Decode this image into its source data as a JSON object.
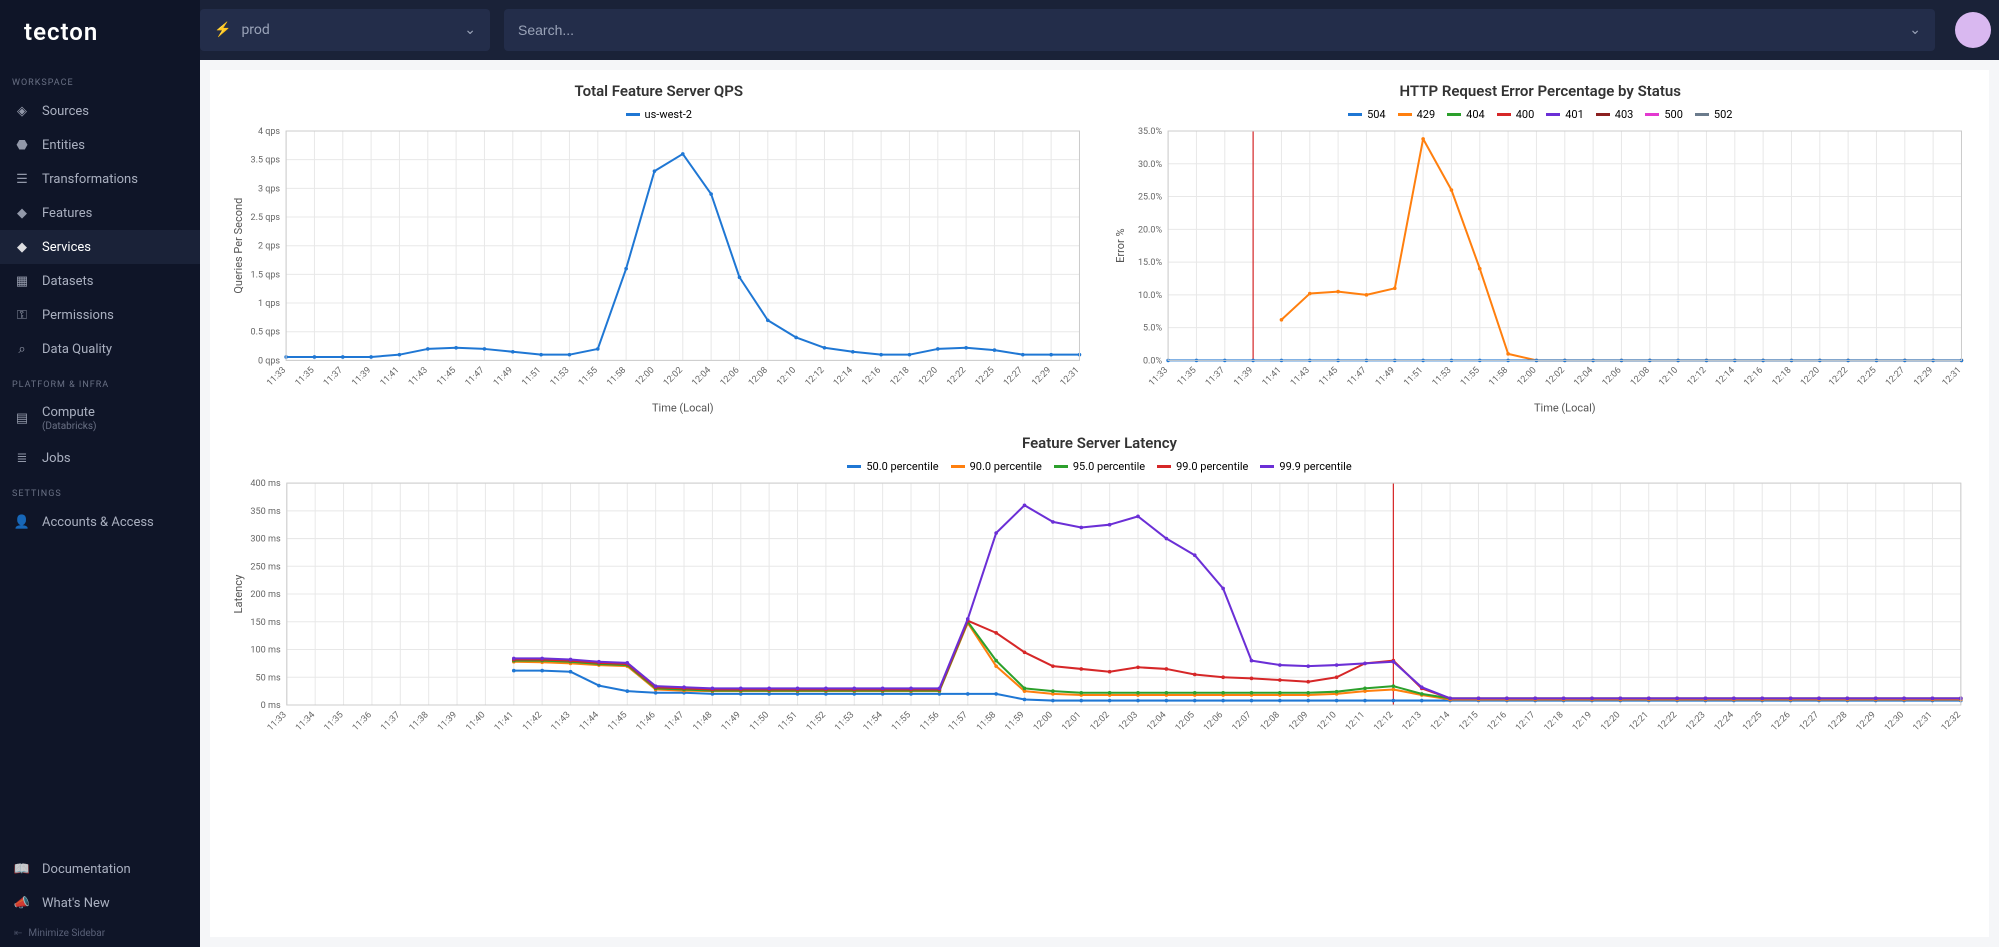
{
  "brand": "tecton",
  "topbar": {
    "env_label": "prod",
    "search_placeholder": "Search..."
  },
  "sidebar": {
    "sections": {
      "workspace": {
        "header": "WORKSPACE",
        "items": [
          {
            "label": "Sources",
            "icon": "diamond"
          },
          {
            "label": "Entities",
            "icon": "cube"
          },
          {
            "label": "Transformations",
            "icon": "layers"
          },
          {
            "label": "Features",
            "icon": "stack"
          },
          {
            "label": "Services",
            "icon": "diamond-solid",
            "active": true
          },
          {
            "label": "Datasets",
            "icon": "grid"
          },
          {
            "label": "Permissions",
            "icon": "key"
          },
          {
            "label": "Data Quality",
            "icon": "search"
          }
        ]
      },
      "platform": {
        "header": "PLATFORM & INFRA",
        "items": [
          {
            "label": "Compute",
            "sub": "(Databricks)",
            "icon": "server"
          },
          {
            "label": "Jobs",
            "icon": "list"
          }
        ]
      },
      "settings": {
        "header": "SETTINGS",
        "items": [
          {
            "label": "Accounts & Access",
            "icon": "user"
          }
        ]
      }
    },
    "footer": [
      {
        "label": "Documentation",
        "icon": "book"
      },
      {
        "label": "What's New",
        "icon": "megaphone"
      }
    ],
    "minimize_label": "Minimize Sidebar"
  },
  "charts": {
    "qps": {
      "type": "line",
      "title": "Total Feature Server QPS",
      "xlabel": "Time (Local)",
      "ylabel": "Queries Per Second",
      "legend": [
        {
          "label": "us-west-2",
          "color": "#1f77d4"
        }
      ],
      "x_categories": [
        "11:33",
        "11:35",
        "11:37",
        "11:39",
        "11:41",
        "11:43",
        "11:45",
        "11:47",
        "11:49",
        "11:51",
        "11:53",
        "11:55",
        "11:58",
        "12:00",
        "12:02",
        "12:04",
        "12:06",
        "12:08",
        "12:10",
        "12:12",
        "12:14",
        "12:16",
        "12:18",
        "12:20",
        "12:22",
        "12:25",
        "12:27",
        "12:29",
        "12:31"
      ],
      "ylim": [
        0,
        4
      ],
      "ytick_step": 0.5,
      "ytick_suffix": " qps",
      "series": [
        {
          "color": "#1f77d4",
          "values": [
            0.06,
            0.06,
            0.06,
            0.06,
            0.1,
            0.2,
            0.22,
            0.2,
            0.15,
            0.1,
            0.1,
            0.2,
            1.6,
            3.3,
            3.6,
            2.9,
            1.45,
            0.7,
            0.4,
            0.22,
            0.15,
            0.1,
            0.1,
            0.2,
            0.22,
            0.18,
            0.1,
            0.1,
            0.1
          ]
        }
      ],
      "grid_color": "#e8e8e8",
      "background_color": "#ffffff"
    },
    "errors": {
      "type": "line",
      "title": "HTTP Request Error Percentage by Status",
      "xlabel": "Time (Local)",
      "ylabel": "Error %",
      "legend": [
        {
          "label": "504",
          "color": "#1f77d4"
        },
        {
          "label": "429",
          "color": "#ff7f0e"
        },
        {
          "label": "404",
          "color": "#2ca02c"
        },
        {
          "label": "400",
          "color": "#d62728"
        },
        {
          "label": "401",
          "color": "#6b2fd6"
        },
        {
          "label": "403",
          "color": "#8c2020"
        },
        {
          "label": "500",
          "color": "#e339d0"
        },
        {
          "label": "502",
          "color": "#6b7b8c"
        }
      ],
      "x_categories": [
        "11:33",
        "11:35",
        "11:37",
        "11:39",
        "11:41",
        "11:43",
        "11:45",
        "11:47",
        "11:49",
        "11:51",
        "11:53",
        "11:55",
        "11:58",
        "12:00",
        "12:02",
        "12:04",
        "12:06",
        "12:08",
        "12:10",
        "12:12",
        "12:14",
        "12:16",
        "12:18",
        "12:20",
        "12:22",
        "12:25",
        "12:27",
        "12:29",
        "12:31"
      ],
      "ylim": [
        0,
        35
      ],
      "ytick_step": 5,
      "ytick_suffix": ".0%",
      "vline_index": 3,
      "vline_color": "#d62728",
      "series": [
        {
          "color": "#ff7f0e",
          "values": [
            null,
            null,
            null,
            null,
            6.2,
            10.2,
            10.5,
            10,
            11,
            33.8,
            26,
            14,
            1,
            0,
            0,
            0,
            0,
            0,
            0,
            0,
            0,
            0,
            0,
            0,
            0,
            0,
            0,
            0,
            0
          ]
        },
        {
          "color": "#1f77d4",
          "values": [
            0,
            0,
            0,
            0,
            0,
            0,
            0,
            0,
            0,
            0,
            0,
            0,
            0,
            0,
            0,
            0,
            0,
            0,
            0,
            0,
            0,
            0,
            0,
            0,
            0,
            0,
            0,
            0,
            0
          ]
        }
      ],
      "grid_color": "#e8e8e8",
      "background_color": "#ffffff"
    },
    "latency": {
      "type": "line",
      "title": "Feature Server Latency",
      "xlabel": "",
      "ylabel": "Latency",
      "legend": [
        {
          "label": "50.0 percentile",
          "color": "#1f77d4"
        },
        {
          "label": "90.0 percentile",
          "color": "#ff7f0e"
        },
        {
          "label": "95.0 percentile",
          "color": "#2ca02c"
        },
        {
          "label": "99.0 percentile",
          "color": "#d62728"
        },
        {
          "label": "99.9 percentile",
          "color": "#6b2fd6"
        }
      ],
      "x_categories": [
        "11:33",
        "11:34",
        "11:35",
        "11:36",
        "11:37",
        "11:38",
        "11:39",
        "11:40",
        "11:41",
        "11:42",
        "11:43",
        "11:44",
        "11:45",
        "11:46",
        "11:47",
        "11:48",
        "11:49",
        "11:50",
        "11:51",
        "11:52",
        "11:53",
        "11:54",
        "11:55",
        "11:56",
        "11:57",
        "11:58",
        "11:59",
        "12:00",
        "12:01",
        "12:02",
        "12:03",
        "12:04",
        "12:05",
        "12:06",
        "12:07",
        "12:08",
        "12:09",
        "12:10",
        "12:11",
        "12:12",
        "12:13",
        "12:14",
        "12:15",
        "12:16",
        "12:17",
        "12:18",
        "12:19",
        "12:20",
        "12:21",
        "12:22",
        "12:23",
        "12:24",
        "12:25",
        "12:26",
        "12:27",
        "12:28",
        "12:29",
        "12:30",
        "12:31",
        "12:32"
      ],
      "ylim": [
        0,
        400
      ],
      "ytick_step": 50,
      "ytick_suffix": " ms",
      "vline_index": 39,
      "vline_color": "#d62728",
      "series": [
        {
          "color": "#1f77d4",
          "values": [
            null,
            null,
            null,
            null,
            null,
            null,
            null,
            null,
            62,
            62,
            60,
            35,
            25,
            22,
            22,
            20,
            20,
            20,
            20,
            20,
            20,
            20,
            20,
            20,
            20,
            20,
            10,
            8,
            8,
            8,
            8,
            8,
            8,
            8,
            8,
            8,
            8,
            8,
            8,
            8,
            8,
            8,
            8,
            8,
            8,
            8,
            8,
            8,
            8,
            8,
            8,
            8,
            8,
            8,
            8,
            8,
            8,
            8,
            8,
            8
          ]
        },
        {
          "color": "#ff7f0e",
          "values": [
            null,
            null,
            null,
            null,
            null,
            null,
            null,
            null,
            78,
            77,
            75,
            72,
            70,
            28,
            26,
            25,
            25,
            25,
            25,
            25,
            25,
            25,
            25,
            25,
            148,
            70,
            25,
            20,
            18,
            18,
            18,
            18,
            18,
            18,
            18,
            18,
            18,
            20,
            25,
            28,
            18,
            10,
            10,
            10,
            10,
            10,
            10,
            10,
            10,
            10,
            10,
            10,
            10,
            10,
            10,
            10,
            10,
            10,
            10,
            10
          ]
        },
        {
          "color": "#2ca02c",
          "values": [
            null,
            null,
            null,
            null,
            null,
            null,
            null,
            null,
            80,
            80,
            78,
            74,
            72,
            30,
            28,
            26,
            26,
            26,
            26,
            26,
            26,
            26,
            26,
            26,
            150,
            80,
            30,
            25,
            22,
            22,
            22,
            22,
            22,
            22,
            22,
            22,
            22,
            24,
            30,
            34,
            20,
            12,
            12,
            12,
            12,
            12,
            12,
            12,
            12,
            12,
            12,
            12,
            12,
            12,
            12,
            12,
            12,
            12,
            12,
            12
          ]
        },
        {
          "color": "#d62728",
          "values": [
            null,
            null,
            null,
            null,
            null,
            null,
            null,
            null,
            82,
            82,
            80,
            76,
            74,
            32,
            30,
            28,
            28,
            28,
            28,
            28,
            28,
            28,
            28,
            28,
            152,
            130,
            95,
            70,
            65,
            60,
            68,
            65,
            55,
            50,
            48,
            45,
            42,
            50,
            75,
            80,
            30,
            12,
            12,
            12,
            12,
            12,
            12,
            12,
            12,
            12,
            12,
            12,
            12,
            12,
            12,
            12,
            12,
            12,
            12,
            12
          ]
        },
        {
          "color": "#6b2fd6",
          "values": [
            null,
            null,
            null,
            null,
            null,
            null,
            null,
            null,
            84,
            84,
            82,
            78,
            76,
            34,
            32,
            30,
            30,
            30,
            30,
            30,
            30,
            30,
            30,
            30,
            155,
            310,
            360,
            330,
            320,
            325,
            340,
            300,
            270,
            210,
            80,
            72,
            70,
            72,
            75,
            78,
            32,
            12,
            12,
            12,
            12,
            12,
            12,
            12,
            12,
            12,
            12,
            12,
            12,
            12,
            12,
            12,
            12,
            12,
            12,
            12
          ]
        }
      ],
      "grid_color": "#e8e8e8",
      "background_color": "#ffffff"
    }
  }
}
